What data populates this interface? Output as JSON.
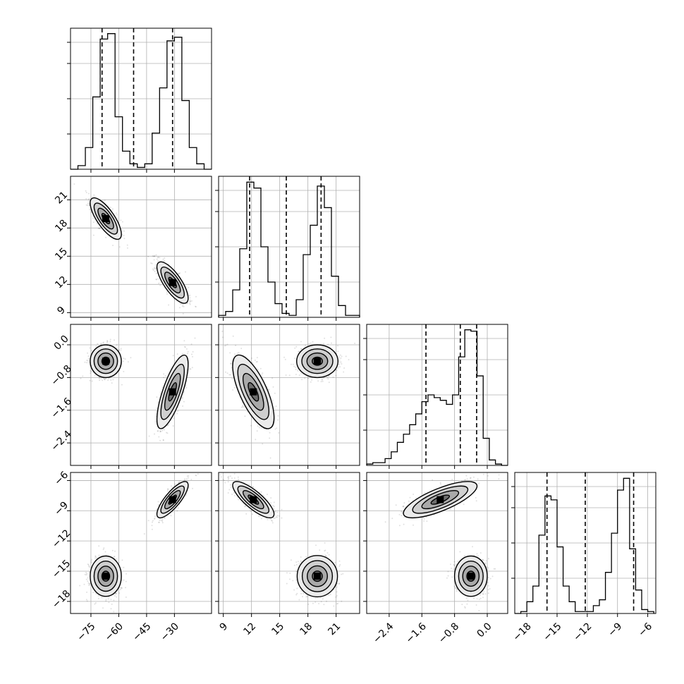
{
  "chart_data": {
    "type": "corner",
    "grid": true,
    "quantile_lines": "dashed",
    "parameters": [
      {
        "range": [
          -86,
          -10
        ],
        "ticks": [
          -75,
          -60,
          -45,
          -30
        ],
        "tick_labels": [
          "−75",
          "−60",
          "−45",
          "−30"
        ],
        "quantiles": [
          -69,
          -52,
          -31
        ],
        "histogram": {
          "edges": [
            -86,
            -82,
            -78,
            -74,
            -70,
            -66,
            -62,
            -58,
            -54,
            -50,
            -46,
            -42,
            -38,
            -34,
            -30,
            -26,
            -22,
            -18,
            -14,
            -10
          ],
          "counts": [
            0,
            2,
            12,
            40,
            72,
            75,
            29,
            10,
            3,
            1,
            3,
            20,
            45,
            71,
            73,
            38,
            12,
            3,
            0
          ],
          "ymax": 78
        }
      },
      {
        "range": [
          8.5,
          23.5
        ],
        "ticks": [
          9,
          12,
          15,
          18,
          21
        ],
        "tick_labels": [
          "9",
          "12",
          "15",
          "18",
          "21"
        ],
        "quantiles": [
          11.8,
          15.7,
          19.4
        ],
        "histogram": {
          "edges": [
            8.5,
            9.25,
            10.0,
            10.75,
            11.5,
            12.25,
            13.0,
            13.75,
            14.5,
            15.25,
            16.0,
            16.75,
            17.5,
            18.25,
            19.0,
            19.75,
            20.5,
            21.25,
            22.0,
            22.75,
            23.5
          ],
          "counts": [
            1,
            3,
            14,
            35,
            69,
            66,
            36,
            18,
            7,
            2,
            1,
            9,
            32,
            47,
            67,
            56,
            21,
            6,
            1,
            1
          ],
          "ymax": 72
        }
      },
      {
        "range": [
          -2.95,
          0.5
        ],
        "ticks": [
          -2.4,
          -1.6,
          -0.8,
          0.0
        ],
        "tick_labels": [
          "−2.4",
          "−1.6",
          "−0.8",
          "0.0"
        ],
        "quantiles": [
          -1.5,
          -0.66,
          -0.26
        ],
        "histogram": {
          "edges": [
            -2.95,
            -2.8,
            -2.65,
            -2.5,
            -2.35,
            -2.2,
            -2.05,
            -1.9,
            -1.75,
            -1.6,
            -1.45,
            -1.3,
            -1.15,
            -1.0,
            -0.85,
            -0.7,
            -0.55,
            -0.4,
            -0.25,
            -0.1,
            0.05,
            0.2,
            0.35,
            0.5
          ],
          "counts": [
            1,
            2,
            2,
            5,
            10,
            17,
            23,
            30,
            38,
            47,
            52,
            50,
            48,
            45,
            52,
            80,
            100,
            99,
            66,
            20,
            4,
            1,
            0
          ],
          "ymax": 104
        }
      },
      {
        "range": [
          -19.2,
          -5.2
        ],
        "ticks": [
          -18,
          -15,
          -12,
          -9,
          -6
        ],
        "tick_labels": [
          "−18",
          "−15",
          "−12",
          "−9",
          "−6"
        ],
        "quantiles": [
          -16.0,
          -12.2,
          -7.4
        ],
        "histogram": {
          "edges": [
            -19.2,
            -18.6,
            -18.0,
            -17.4,
            -16.8,
            -16.2,
            -15.6,
            -15.0,
            -14.4,
            -13.8,
            -13.2,
            -12.6,
            -12.0,
            -11.4,
            -10.8,
            -10.2,
            -9.6,
            -9.0,
            -8.4,
            -7.8,
            -7.2,
            -6.6,
            -6.0,
            -5.4
          ],
          "counts": [
            0,
            1,
            6,
            14,
            40,
            60,
            58,
            34,
            14,
            6,
            1,
            1,
            1,
            4,
            7,
            21,
            41,
            63,
            69,
            33,
            12,
            2,
            1
          ],
          "ymax": 72
        }
      }
    ],
    "clusters": [
      {
        "weight": 0.5,
        "mean": [
          -67,
          19.0,
          -0.4,
          -15.5
        ],
        "sd": [
          4.2,
          1.1,
          0.2,
          1.0
        ],
        "corr01": -0.75,
        "corr13": 0.0,
        "corr23": 0.0,
        "corr02": 0.0,
        "corr03": 0.0,
        "corr12": 0.0
      },
      {
        "weight": 0.5,
        "mean": [
          -31,
          12.2,
          -1.15,
          -7.9
        ],
        "sd": [
          4.2,
          1.1,
          0.45,
          0.9
        ],
        "corr01": -0.75,
        "corr13": -0.8,
        "corr23": 0.75,
        "corr02": 0.75,
        "corr03": 0.8,
        "corr12": -0.7
      }
    ]
  }
}
